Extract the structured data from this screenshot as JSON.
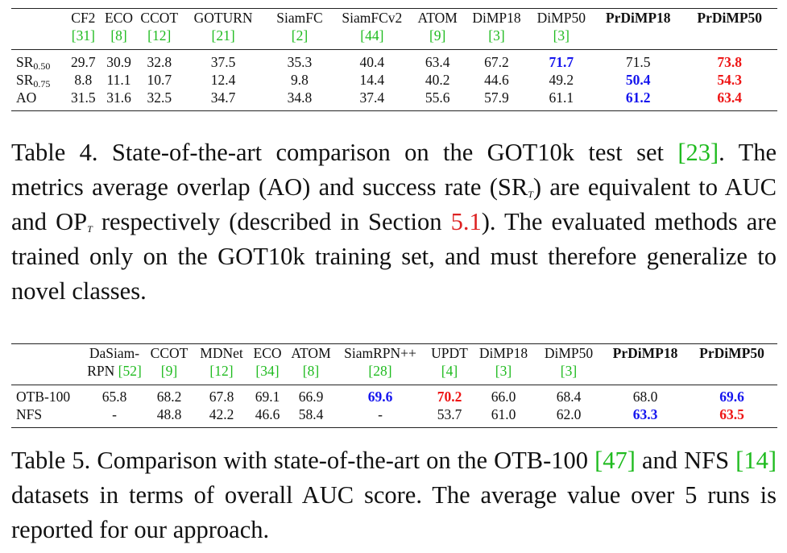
{
  "table4": {
    "columns": [
      {
        "name": "CF2",
        "ref": "[31]"
      },
      {
        "name": "ECO",
        "ref": "[8]"
      },
      {
        "name": "CCOT",
        "ref": "[12]"
      },
      {
        "name": "GOTURN",
        "ref": "[21]"
      },
      {
        "name": "SiamFC",
        "ref": "[2]"
      },
      {
        "name": "SiamFCv2",
        "ref": "[44]"
      },
      {
        "name": "ATOM",
        "ref": "[9]"
      },
      {
        "name": "DiMP18",
        "ref": "[3]"
      },
      {
        "name": "DiMP50",
        "ref": "[3]"
      },
      {
        "name": "PrDiMP18",
        "ref": ""
      },
      {
        "name": "PrDiMP50",
        "ref": ""
      }
    ],
    "rows": [
      {
        "label": "SR",
        "sub": "0.50",
        "values": [
          "29.7",
          "30.9",
          "32.8",
          "37.5",
          "35.3",
          "40.4",
          "63.4",
          "67.2",
          "71.7",
          "71.5",
          "73.8"
        ],
        "styles": [
          "",
          "",
          "",
          "",
          "",
          "",
          "",
          "",
          "blue",
          "",
          "red"
        ]
      },
      {
        "label": "SR",
        "sub": "0.75",
        "values": [
          "8.8",
          "11.1",
          "10.7",
          "12.4",
          "9.8",
          "14.4",
          "40.2",
          "44.6",
          "49.2",
          "50.4",
          "54.3"
        ],
        "styles": [
          "",
          "",
          "",
          "",
          "",
          "",
          "",
          "",
          "",
          "blue",
          "red"
        ]
      },
      {
        "label": "AO",
        "sub": "",
        "values": [
          "31.5",
          "31.6",
          "32.5",
          "34.7",
          "34.8",
          "37.4",
          "55.6",
          "57.9",
          "61.1",
          "61.2",
          "63.4"
        ],
        "styles": [
          "",
          "",
          "",
          "",
          "",
          "",
          "",
          "",
          "",
          "blue",
          "red"
        ]
      }
    ]
  },
  "caption4": {
    "p1": "Table 4. State-of-the-art comparison on the GOT10k test set ",
    "ref1": "[23]",
    "p2": ". The metrics average overlap (AO) and success rate (SR",
    "sub1": "T",
    "p3": ") are equivalent to AUC and OP",
    "sub2": "T",
    "p4": " respectively (described in Section ",
    "ref2": "5.1",
    "p5": "). The evaluated methods are trained only on the GOT10k training set, and must therefore generalize to novel classes."
  },
  "table5": {
    "columns": [
      {
        "name": "DaSiam-",
        "name2": "RPN",
        "ref": "[52]"
      },
      {
        "name": "CCOT",
        "name2": "",
        "ref": "[9]"
      },
      {
        "name": "MDNet",
        "name2": "",
        "ref": "[12]"
      },
      {
        "name": "ECO",
        "name2": "",
        "ref": "[34]"
      },
      {
        "name": "ATOM",
        "name2": "",
        "ref": "[8]"
      },
      {
        "name": "SiamRPN++",
        "name2": "",
        "ref": "[28]"
      },
      {
        "name": "UPDT",
        "name2": "",
        "ref": "[4]"
      },
      {
        "name": "DiMP18",
        "name2": "",
        "ref": "[3]"
      },
      {
        "name": "DiMP50",
        "name2": "",
        "ref": "[3]"
      },
      {
        "name": "PrDiMP18",
        "name2": "",
        "ref": ""
      },
      {
        "name": "PrDiMP50",
        "name2": "",
        "ref": ""
      }
    ],
    "rows": [
      {
        "label": "OTB-100",
        "values": [
          "65.8",
          "68.2",
          "67.8",
          "69.1",
          "66.9",
          "69.6",
          "70.2",
          "66.0",
          "68.4",
          "68.0",
          "69.6"
        ],
        "styles": [
          "",
          "",
          "",
          "",
          "",
          "blue",
          "red",
          "",
          "",
          "",
          "blue"
        ]
      },
      {
        "label": "NFS",
        "values": [
          "-",
          "48.8",
          "42.2",
          "46.6",
          "58.4",
          "-",
          "53.7",
          "61.0",
          "62.0",
          "63.3",
          "63.5"
        ],
        "styles": [
          "",
          "",
          "",
          "",
          "",
          "",
          "",
          "",
          "",
          "blue",
          "red"
        ]
      }
    ]
  },
  "caption5": {
    "p1": "Table 5. Comparison with state-of-the-art on the OTB-100 ",
    "ref1": "[47]",
    "p2": " and NFS ",
    "ref2": "[14]",
    "p3": " datasets in terms of overall AUC score. The average value over 5 runs is reported for our approach."
  },
  "colors": {
    "cite": "#1fbb1f",
    "best_blue": "#1515ee",
    "best_red": "#ee1515",
    "section_ref": "#dd2222"
  }
}
